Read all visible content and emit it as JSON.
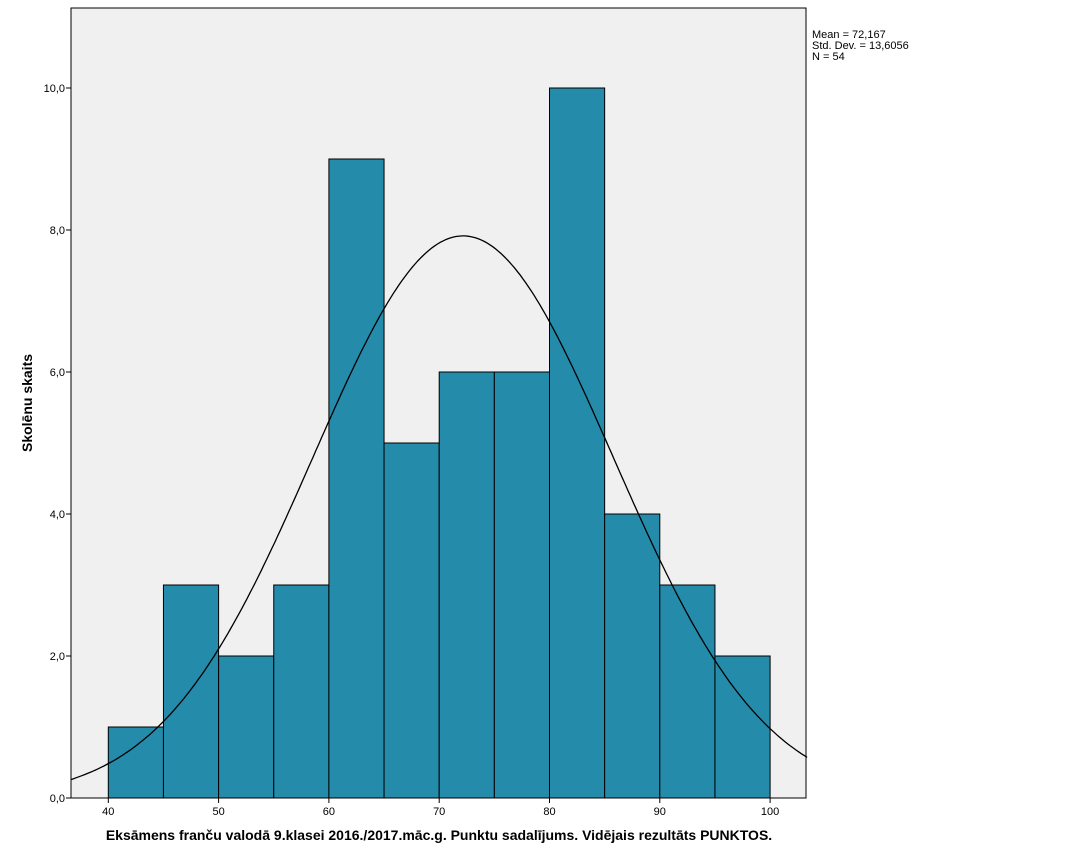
{
  "chart_data": {
    "type": "bar",
    "subtype": "histogram",
    "title": "",
    "xlabel": "Eksāmens franču valodā 9.klasei 2016./2017.māc.g. Punktu sadalījums. Vidējais rezultāts PUNKTOS.",
    "ylabel": "Skolēnu skaits",
    "xlim": [
      36.6,
      103.4
    ],
    "ylim": [
      0,
      11.1
    ],
    "x_ticks": [
      "40",
      "50",
      "60",
      "70",
      "80",
      "90",
      "100"
    ],
    "x_tick_values": [
      40,
      50,
      60,
      70,
      80,
      90,
      100
    ],
    "y_ticks": [
      "0,0",
      "2,0",
      "4,0",
      "6,0",
      "8,0",
      "10,0"
    ],
    "y_tick_values": [
      0,
      2,
      4,
      6,
      8,
      10
    ],
    "bin_edges": [
      40,
      45,
      50,
      55,
      60,
      65,
      70,
      75,
      80,
      85,
      90,
      95,
      100
    ],
    "values": [
      1,
      3,
      2,
      3,
      9,
      5,
      6,
      6,
      10,
      4,
      3,
      2
    ],
    "normal_curve": {
      "mean": 72.167,
      "sd": 13.6056,
      "n": 54,
      "bin_width": 5
    },
    "legend": [
      "Mean = 72,167",
      "Std. Dev. = 13,6056",
      "N = 54"
    ],
    "legend_position": "top-right outside",
    "bar_color": "#248bab",
    "plot_background": "#f0f0f0",
    "grid": false
  }
}
